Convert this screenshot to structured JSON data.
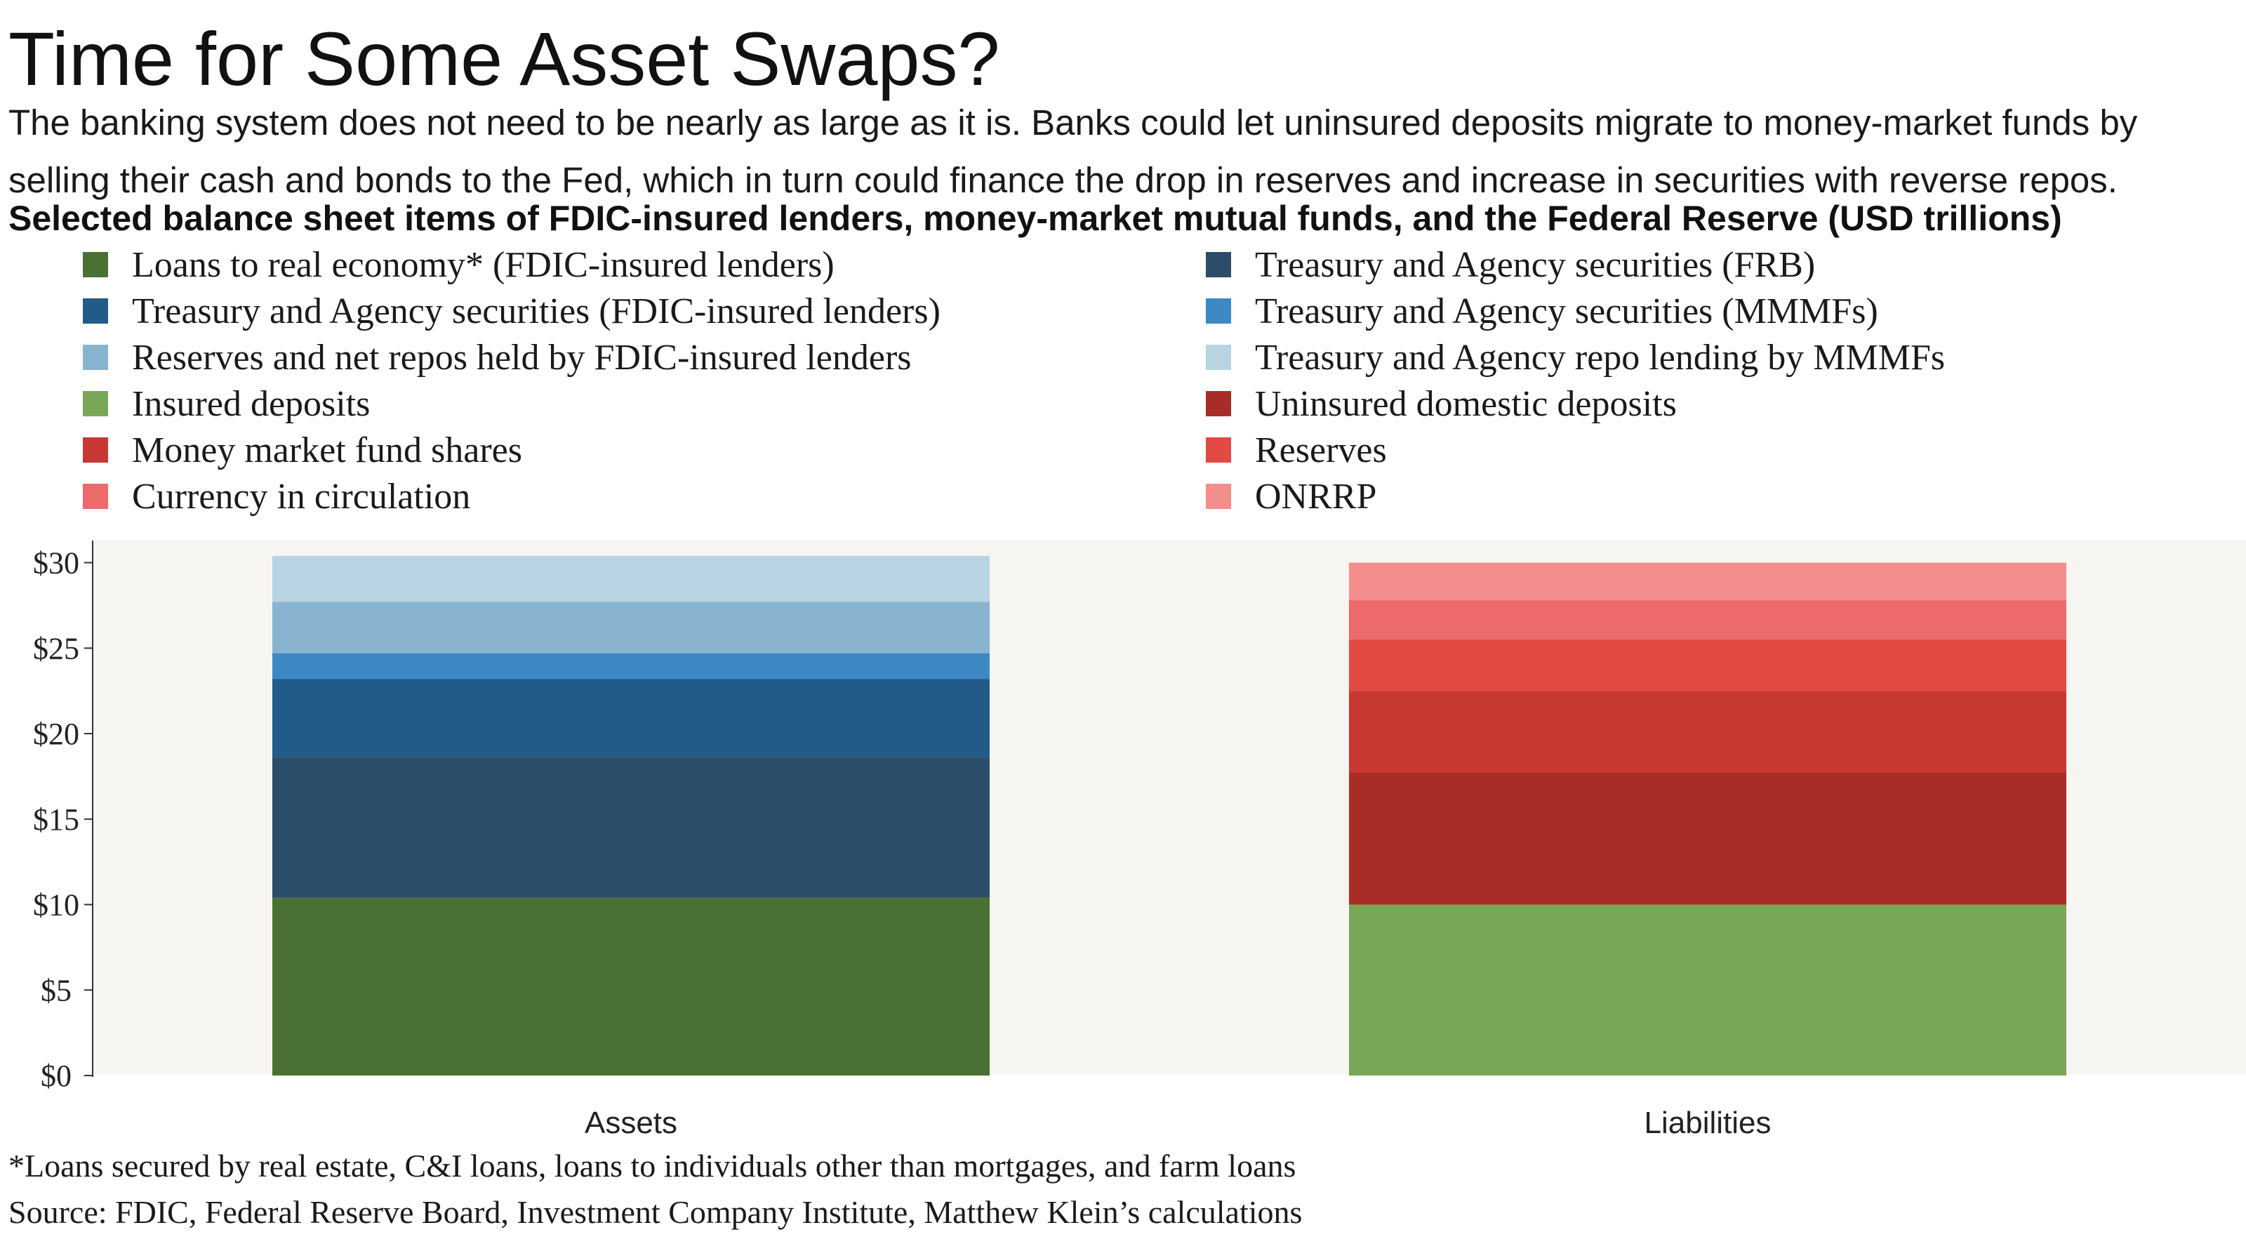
{
  "title": "Time for Some Asset Swaps?",
  "subtitle": "The banking system does not need to be nearly as large as it is. Banks could let uninsured deposits migrate to money-market funds by selling their cash and bonds to the Fed, which in turn could finance the drop in reserves and increase in securities with reverse repos.",
  "chart_heading": "Selected balance sheet items of FDIC-insured lenders, money-market mutual funds, and the Federal Reserve (USD trillions)",
  "footnote": "*Loans secured by real estate, C&I loans, loans to individuals other than mortgages, and farm loans",
  "source": "Source: FDIC, Federal Reserve Board, Investment Company Institute, Matthew Klein’s calculations",
  "chart_data": {
    "type": "bar",
    "stacked": true,
    "categories": [
      "Assets",
      "Liabilities"
    ],
    "ylim": [
      0,
      31
    ],
    "yticks": [
      0,
      5,
      10,
      15,
      20,
      25,
      30
    ],
    "ytick_labels": [
      "$0",
      "$5",
      "$10",
      "$15",
      "$20",
      "$25",
      "$30"
    ],
    "grid": false,
    "legend_position": "top",
    "series": [
      {
        "name": "Loans to real economy* (FDIC-insured lenders)",
        "color": "#4a7033",
        "values": [
          10.4,
          0
        ]
      },
      {
        "name": "Treasury and Agency securities (FRB)",
        "color": "#2b4d69",
        "values": [
          8.2,
          0
        ]
      },
      {
        "name": "Treasury and Agency securities (FDIC-insured lenders)",
        "color": "#225b88",
        "values": [
          4.6,
          0
        ]
      },
      {
        "name": "Treasury and Agency securities (MMMFs)",
        "color": "#3c89c6",
        "values": [
          1.5,
          0
        ]
      },
      {
        "name": "Reserves and net repos held by FDIC-insured lenders",
        "color": "#89b4d0",
        "values": [
          3.0,
          0
        ]
      },
      {
        "name": "Treasury and Agency repo lending by MMMFs",
        "color": "#b8d4e3",
        "values": [
          2.7,
          0
        ]
      },
      {
        "name": "Insured deposits",
        "color": "#7aa65a",
        "values": [
          0,
          10.0
        ]
      },
      {
        "name": "Uninsured domestic deposits",
        "color": "#a82d28",
        "values": [
          0,
          7.7
        ]
      },
      {
        "name": "Money market fund shares",
        "color": "#c73832",
        "values": [
          0,
          4.8
        ]
      },
      {
        "name": "Reserves",
        "color": "#e44a44",
        "values": [
          0,
          3.0
        ]
      },
      {
        "name": "Currency in circulation",
        "color": "#ec6a69",
        "values": [
          0,
          2.3
        ]
      },
      {
        "name": "ONRRP",
        "color": "#f38e8c",
        "values": [
          0,
          2.2
        ]
      }
    ]
  }
}
